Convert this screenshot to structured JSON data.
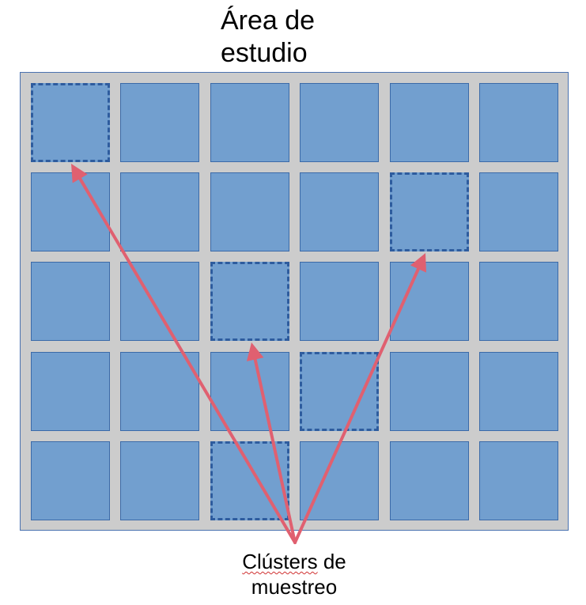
{
  "title": {
    "line1": "Área de",
    "line2": "estudio"
  },
  "caption": {
    "word1": "Clústers",
    "rest": " de",
    "line2": "muestreo"
  },
  "grid": {
    "rows": 5,
    "cols": 6
  },
  "selected_cells": [
    [
      0,
      0
    ],
    [
      1,
      4
    ],
    [
      2,
      2
    ],
    [
      3,
      3
    ],
    [
      4,
      2
    ]
  ],
  "colors": {
    "cell": "#729fcf",
    "background": "#cccccc",
    "arrow": "#e06070",
    "dashed_border": "#2e5c9e"
  }
}
